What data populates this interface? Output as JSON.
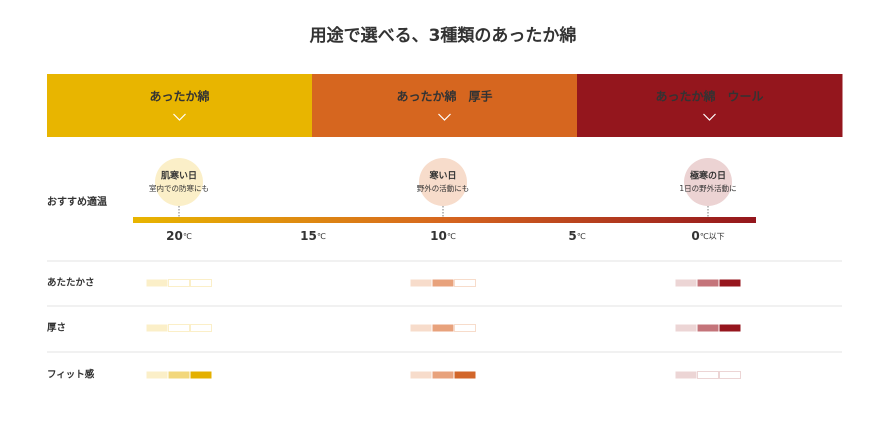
{
  "title": "用途で選べる、3種類のあったか綿",
  "tabs": [
    {
      "label": "あったか綿",
      "color": "#e8b500",
      "shades": [
        "#fbefc8",
        "#f2d77c",
        "#e4b000"
      ],
      "bubble_color": "#fbefc8"
    },
    {
      "label": "あったか綿　厚手",
      "color": "#d6661f",
      "shades": [
        "#f7dccb",
        "#e8a27c",
        "#d2662a"
      ],
      "bubble_color": "#f7dccb"
    },
    {
      "label": "あったか綿　ウール",
      "color": "#94161d",
      "shades": [
        "#ecd5d5",
        "#c4747a",
        "#96161e"
      ],
      "bubble_color": "#ecd3d3"
    }
  ],
  "temperature": {
    "label": "おすすめ適温",
    "bubbles": [
      {
        "title": "肌寒い日",
        "text": "室内での防寒にも"
      },
      {
        "title": "寒い日",
        "text": "野外の活動にも"
      },
      {
        "title": "極寒の日",
        "text": "1日の野外活動に"
      }
    ],
    "scale": [
      {
        "number": "20",
        "unit": "℃"
      },
      {
        "number": "15",
        "unit": "℃"
      },
      {
        "number": "10",
        "unit": "℃"
      },
      {
        "number": "5",
        "unit": "℃"
      },
      {
        "number": "0",
        "unit": "℃以下"
      }
    ]
  },
  "ratings": {
    "max": 3,
    "rows": [
      {
        "label": "あたたかさ",
        "levels": [
          1,
          2,
          3
        ]
      },
      {
        "label": "厚さ",
        "levels": [
          1,
          2,
          3
        ]
      },
      {
        "label": "フィット感",
        "levels": [
          3,
          3,
          1
        ]
      }
    ]
  }
}
